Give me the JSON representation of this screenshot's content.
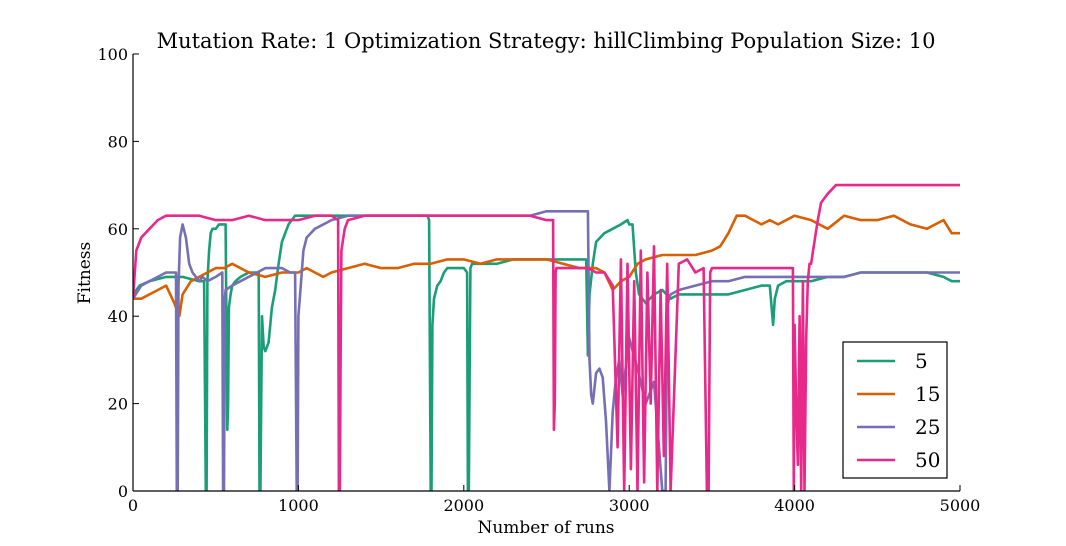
{
  "chart_data": {
    "type": "line",
    "title": "Mutation Rate: 1 Optimization Strategy: hillClimbing Population Size: 10",
    "xlabel": "Number of runs",
    "ylabel": "Fitness",
    "xlim": [
      0,
      5000
    ],
    "ylim": [
      0,
      100
    ],
    "xticks": [
      0,
      1000,
      2000,
      3000,
      4000,
      5000
    ],
    "yticks": [
      0,
      20,
      40,
      60,
      80,
      100
    ],
    "grid": false,
    "legend_position": "bottom-right",
    "series": [
      {
        "name": "5",
        "color": "#1b9e77",
        "x": [
          0,
          40,
          100,
          200,
          300,
          400,
          430,
          440,
          445,
          450,
          460,
          470,
          480,
          500,
          520,
          540,
          560,
          570,
          575,
          580,
          590,
          600,
          620,
          650,
          700,
          740,
          760,
          765,
          770,
          780,
          790,
          800,
          820,
          840,
          860,
          880,
          900,
          940,
          980,
          1000,
          1050,
          1100,
          1200,
          1300,
          1400,
          1500,
          1600,
          1700,
          1780,
          1790,
          1800,
          1805,
          1810,
          1820,
          1840,
          1860,
          1880,
          1900,
          1950,
          2000,
          2020,
          2025,
          2030,
          2040,
          2050,
          2100,
          2200,
          2300,
          2400,
          2500,
          2600,
          2700,
          2740,
          2750,
          2760,
          2780,
          2800,
          2850,
          2900,
          2950,
          2990,
          3000,
          3020,
          3040,
          3060,
          3100,
          3150,
          3200,
          3250,
          3300,
          3400,
          3500,
          3600,
          3700,
          3800,
          3850,
          3870,
          3880,
          3900,
          3950,
          4000,
          4100,
          4200,
          4300,
          4400,
          4500,
          4600,
          4700,
          4800,
          4900,
          4950,
          5000
        ],
        "y": [
          45,
          47,
          48,
          49,
          49,
          48,
          48,
          0,
          0,
          48,
          55,
          59,
          60,
          60,
          61,
          61,
          61,
          14,
          20,
          42,
          45,
          47,
          48,
          49,
          50,
          50,
          50,
          0,
          0,
          40,
          33,
          32,
          34,
          42,
          46,
          52,
          57,
          61,
          63,
          63,
          63,
          63,
          63,
          63,
          63,
          63,
          63,
          63,
          63,
          62,
          0,
          0,
          38,
          44,
          47,
          48,
          50,
          51,
          51,
          51,
          50,
          0,
          0,
          51,
          52,
          52,
          52,
          53,
          53,
          53,
          53,
          53,
          53,
          31,
          45,
          52,
          57,
          59,
          60,
          61,
          62,
          61,
          61,
          50,
          45,
          43,
          45,
          46,
          44,
          45,
          45,
          45,
          45,
          46,
          47,
          47,
          38,
          44,
          47,
          48,
          48,
          48,
          49,
          49,
          50,
          50,
          50,
          50,
          50,
          49,
          48,
          48
        ]
      },
      {
        "name": "15",
        "color": "#d95f02",
        "x": [
          0,
          50,
          100,
          150,
          200,
          250,
          280,
          300,
          350,
          400,
          450,
          500,
          550,
          600,
          650,
          700,
          800,
          900,
          1000,
          1050,
          1100,
          1150,
          1200,
          1300,
          1400,
          1500,
          1600,
          1700,
          1800,
          1900,
          2000,
          2100,
          2200,
          2300,
          2400,
          2500,
          2600,
          2700,
          2800,
          2850,
          2900,
          2950,
          3000,
          3050,
          3100,
          3200,
          3300,
          3400,
          3500,
          3550,
          3600,
          3650,
          3700,
          3750,
          3800,
          3850,
          3900,
          4000,
          4100,
          4200,
          4300,
          4400,
          4500,
          4600,
          4700,
          4800,
          4850,
          4900,
          4950,
          5000
        ],
        "y": [
          44,
          44,
          45,
          46,
          47,
          43,
          40,
          45,
          48,
          49,
          50,
          51,
          51,
          52,
          51,
          50,
          49,
          50,
          50,
          51,
          50,
          49,
          50,
          51,
          52,
          51,
          51,
          52,
          52,
          53,
          53,
          52,
          53,
          53,
          53,
          53,
          52,
          51,
          51,
          50,
          46,
          48,
          49,
          52,
          53,
          54,
          54,
          54,
          55,
          56,
          59,
          63,
          63,
          62,
          61,
          62,
          61,
          63,
          62,
          60,
          63,
          62,
          62,
          63,
          61,
          60,
          61,
          62,
          59,
          59
        ]
      },
      {
        "name": "25",
        "color": "#7570b3",
        "x": [
          0,
          50,
          100,
          150,
          200,
          260,
          265,
          270,
          275,
          285,
          300,
          320,
          340,
          360,
          380,
          400,
          420,
          450,
          500,
          540,
          545,
          550,
          555,
          560,
          600,
          650,
          700,
          750,
          800,
          850,
          900,
          950,
          980,
          990,
          995,
          1000,
          1010,
          1030,
          1050,
          1100,
          1200,
          1300,
          1400,
          1500,
          1600,
          1700,
          1800,
          1900,
          2000,
          2100,
          2200,
          2300,
          2400,
          2500,
          2600,
          2700,
          2750,
          2760,
          2770,
          2780,
          2800,
          2820,
          2840,
          2860,
          2880,
          2900,
          2920,
          2940,
          2960,
          3000,
          3050,
          3100,
          3150,
          3200,
          3220,
          3230,
          3240,
          3250,
          3300,
          3400,
          3500,
          3600,
          3700,
          3800,
          3900,
          4000,
          4100,
          4200,
          4300,
          4400,
          4500,
          4600,
          4700,
          4800,
          4900,
          5000
        ],
        "y": [
          44,
          47,
          48,
          49,
          50,
          50,
          0,
          0,
          47,
          58,
          61,
          58,
          52,
          50,
          49,
          48,
          49,
          48,
          49,
          50,
          0,
          0,
          44,
          46,
          47,
          48,
          49,
          50,
          51,
          51,
          51,
          50,
          50,
          0,
          0,
          40,
          45,
          55,
          58,
          60,
          62,
          63,
          63,
          63,
          63,
          63,
          63,
          63,
          63,
          63,
          63,
          63,
          63,
          64,
          64,
          64,
          64,
          30,
          22,
          20,
          27,
          28,
          26,
          16,
          0,
          18,
          26,
          30,
          22,
          35,
          28,
          20,
          25,
          0,
          0,
          42,
          44,
          45,
          46,
          47,
          48,
          48,
          49,
          49,
          49,
          49,
          49,
          49,
          49,
          50,
          50,
          50,
          50,
          50,
          50,
          50
        ]
      },
      {
        "name": "50",
        "color": "#e7298a",
        "x": [
          0,
          20,
          50,
          100,
          150,
          200,
          250,
          300,
          400,
          500,
          600,
          700,
          800,
          900,
          1000,
          1100,
          1200,
          1240,
          1245,
          1250,
          1255,
          1260,
          1280,
          1300,
          1400,
          1500,
          1600,
          1700,
          1800,
          1900,
          2000,
          2100,
          2200,
          2300,
          2400,
          2500,
          2540,
          2545,
          2550,
          2555,
          2560,
          2580,
          2600,
          2650,
          2700,
          2750,
          2800,
          2850,
          2900,
          2930,
          2950,
          2970,
          2990,
          3010,
          3030,
          3050,
          3070,
          3090,
          3110,
          3130,
          3150,
          3170,
          3190,
          3210,
          3230,
          3250,
          3300,
          3350,
          3400,
          3450,
          3470,
          3480,
          3490,
          3500,
          3600,
          3700,
          3800,
          3900,
          3990,
          3995,
          4000,
          4010,
          4020,
          4030,
          4040,
          4050,
          4060,
          4070,
          4080,
          4090,
          4100,
          4120,
          4140,
          4160,
          4200,
          4250,
          4300,
          4400,
          4500,
          4600,
          4700,
          4800,
          4900,
          5000
        ],
        "y": [
          44,
          55,
          58,
          60,
          62,
          63,
          63,
          63,
          63,
          62,
          62,
          63,
          62,
          62,
          62,
          63,
          63,
          62,
          0,
          0,
          30,
          55,
          60,
          62,
          63,
          63,
          63,
          63,
          63,
          63,
          63,
          63,
          63,
          63,
          63,
          62,
          62,
          14,
          20,
          50,
          51,
          51,
          51,
          51,
          51,
          51,
          50,
          50,
          47,
          10,
          53,
          0,
          52,
          5,
          48,
          0,
          55,
          2,
          50,
          20,
          56,
          0,
          46,
          8,
          52,
          0,
          52,
          53,
          50,
          51,
          0,
          0,
          50,
          51,
          51,
          51,
          51,
          51,
          51,
          0,
          38,
          18,
          6,
          40,
          0,
          48,
          0,
          35,
          48,
          52,
          52,
          57,
          62,
          66,
          68,
          70,
          70,
          70,
          70,
          70,
          70,
          70,
          70,
          70
        ]
      }
    ]
  }
}
